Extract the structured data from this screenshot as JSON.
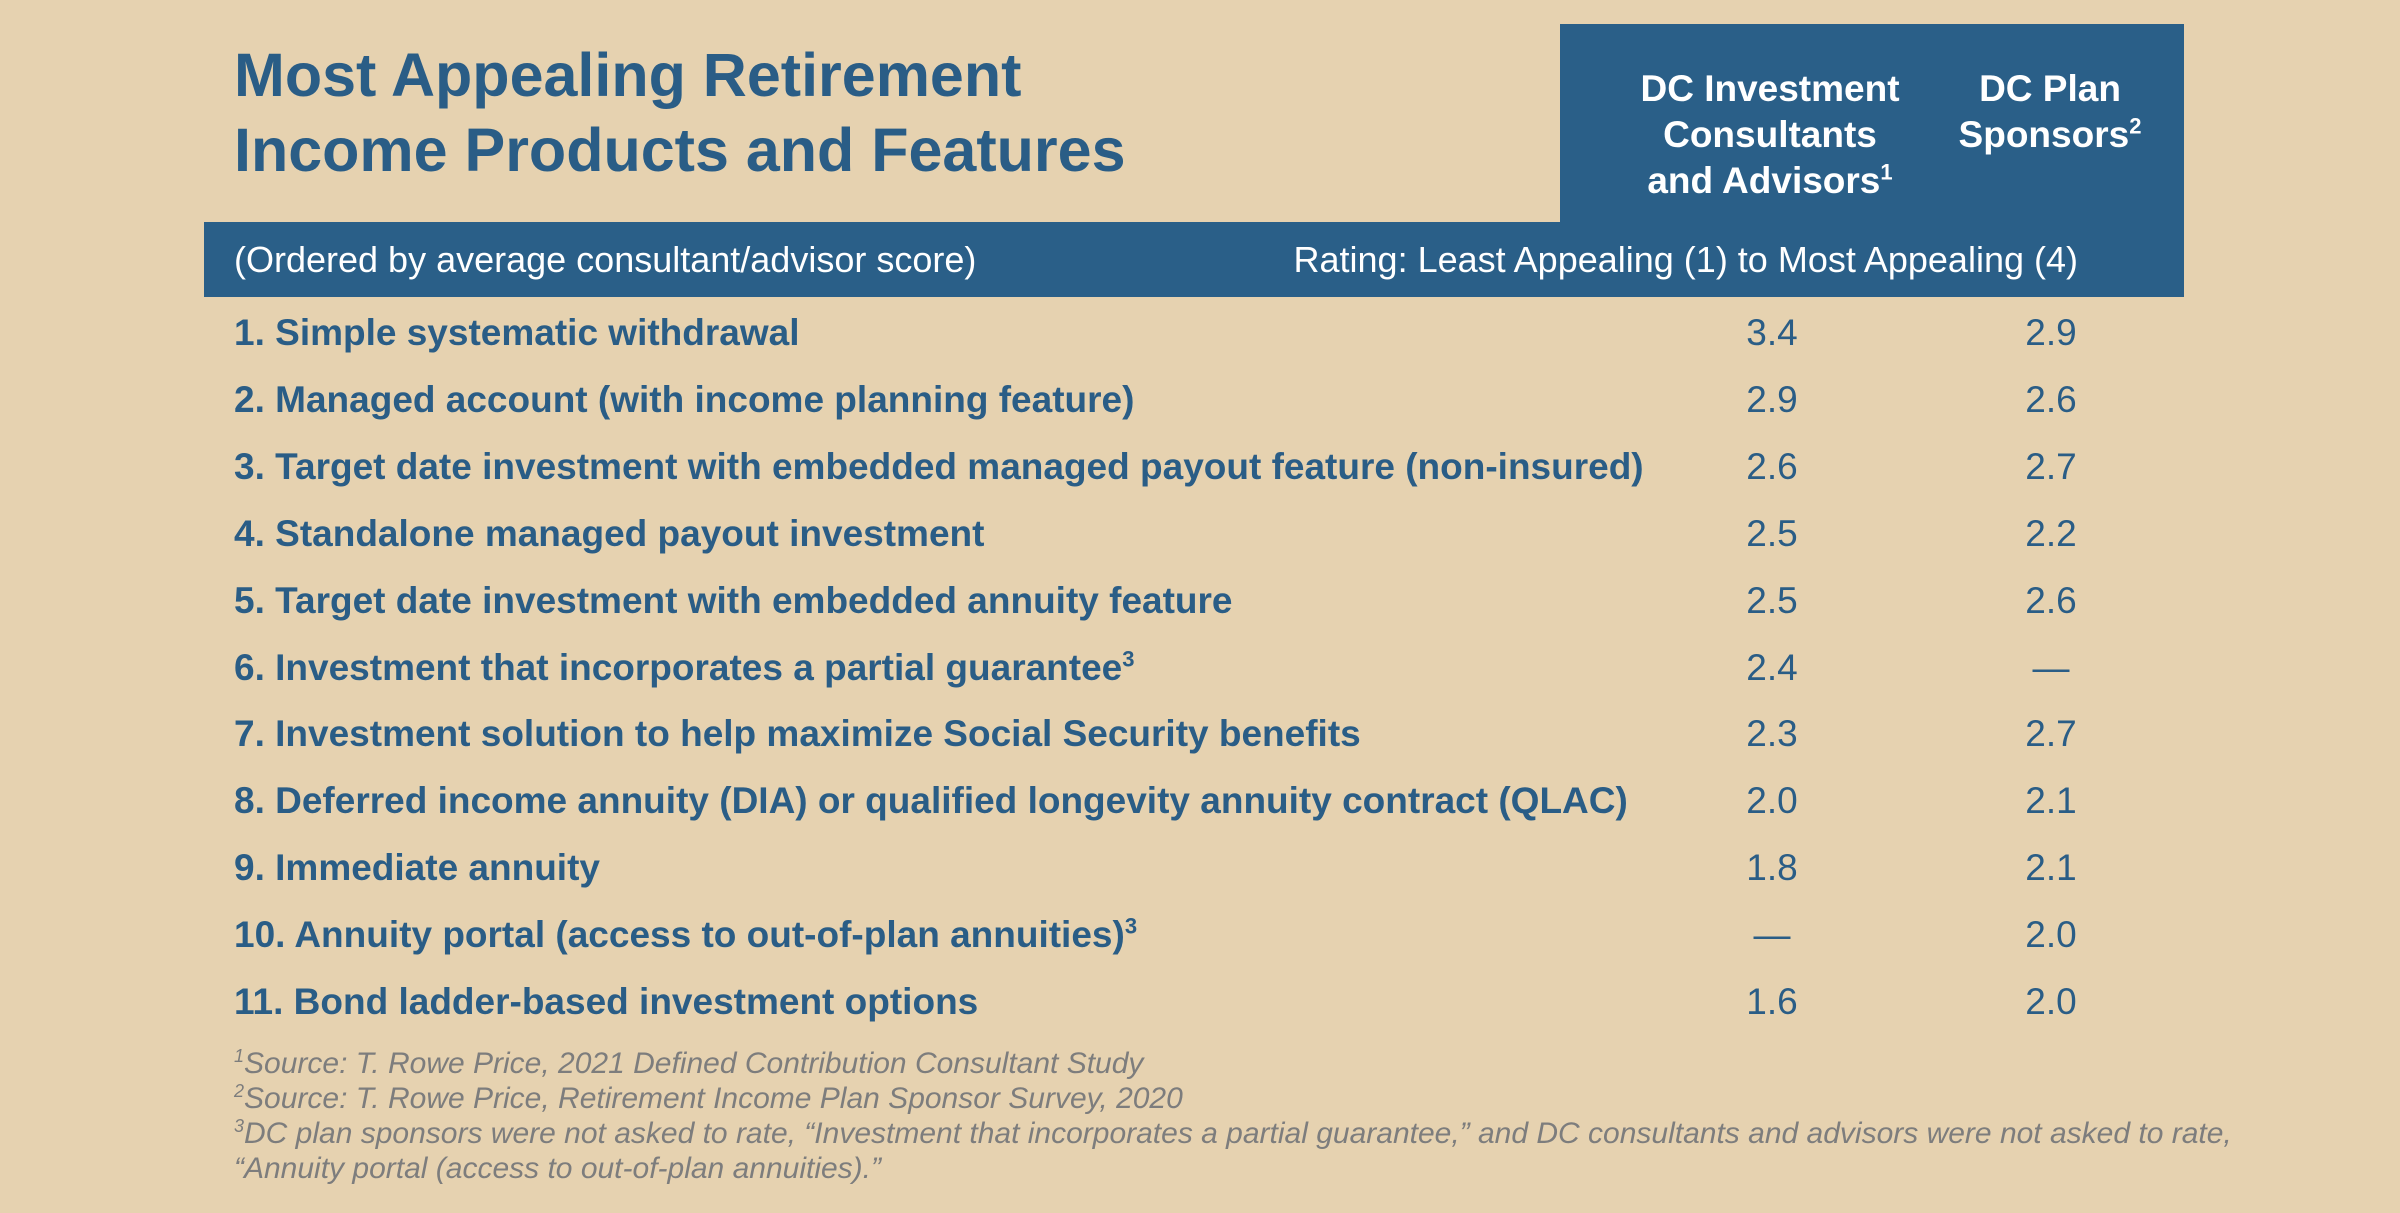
{
  "chart_data": {
    "type": "table",
    "title_lines": [
      "Most Appealing Retirement",
      "Income Products and Features"
    ],
    "columns": [
      {
        "lines": [
          "DC Investment",
          "Consultants",
          "and Advisors"
        ],
        "sup": "1"
      },
      {
        "lines": [
          "DC Plan",
          "Sponsors"
        ],
        "sup": "2"
      }
    ],
    "order_note": "(Ordered by average consultant/advisor score)",
    "rating_note": "Rating: Least Appealing (1) to Most Appealing (4)",
    "rows": [
      {
        "label": "1. Simple systematic withdrawal",
        "sup": "",
        "consultants": "3.4",
        "sponsors": "2.9"
      },
      {
        "label": "2. Managed account (with income planning feature)",
        "sup": "",
        "consultants": "2.9",
        "sponsors": "2.6"
      },
      {
        "label": "3. Target date investment with embedded managed payout feature (non-insured)",
        "sup": "",
        "consultants": "2.6",
        "sponsors": "2.7"
      },
      {
        "label": "4. Standalone managed payout investment",
        "sup": "",
        "consultants": "2.5",
        "sponsors": "2.2"
      },
      {
        "label": "5. Target date investment with embedded annuity feature",
        "sup": "",
        "consultants": "2.5",
        "sponsors": "2.6"
      },
      {
        "label": "6. Investment that incorporates a partial guarantee",
        "sup": "3",
        "consultants": "2.4",
        "sponsors": "—"
      },
      {
        "label": "7. Investment solution to help maximize Social Security benefits",
        "sup": "",
        "consultants": "2.3",
        "sponsors": "2.7"
      },
      {
        "label": "8. Deferred income annuity (DIA) or qualified longevity annuity contract (QLAC)",
        "sup": "",
        "consultants": "2.0",
        "sponsors": "2.1"
      },
      {
        "label": "9. Immediate annuity",
        "sup": "",
        "consultants": "1.8",
        "sponsors": "2.1"
      },
      {
        "label": "10. Annuity portal (access to out-of-plan annuities)",
        "sup": "3",
        "consultants": "—",
        "sponsors": "2.0"
      },
      {
        "label": "11. Bond ladder-based investment options",
        "sup": "",
        "consultants": "1.6",
        "sponsors": "2.0"
      }
    ],
    "footnotes": [
      {
        "sup": "1",
        "text": "Source: T. Rowe Price, 2021 Defined Contribution Consultant Study"
      },
      {
        "sup": "2",
        "text": "Source: T. Rowe Price, Retirement Income Plan Sponsor Survey, 2020"
      },
      {
        "sup": "3",
        "text": "DC plan sponsors were not asked to rate, “Investment that incorporates a partial guarantee,” and DC consultants and advisors were not asked to rate,"
      },
      {
        "sup": "",
        "text": "“Annuity portal (access to out-of-plan annuities).”"
      }
    ]
  },
  "colors": {
    "background": "#e6d2b0",
    "header_fill": "#2a5f88",
    "text_blue": "#2a5d86",
    "footnote_gray": "#7d7d7d"
  }
}
